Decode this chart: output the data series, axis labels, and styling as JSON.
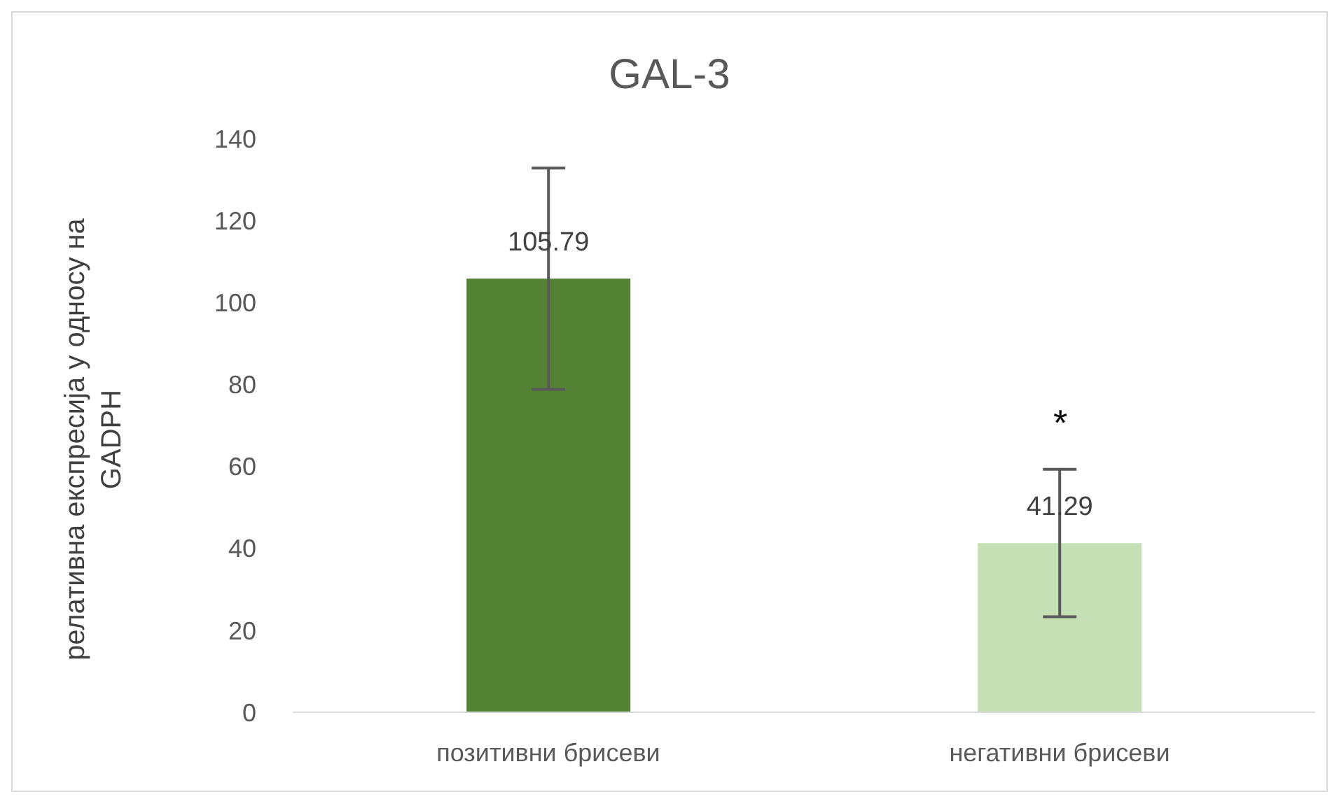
{
  "chart_data": {
    "type": "bar",
    "title": "GAL-3",
    "ylabel": "релативна експресија у односу на GADPH",
    "categories": [
      "позитивни брисеви",
      "негативни брисеви"
    ],
    "values": [
      105.79,
      41.29
    ],
    "colors": [
      "#548235",
      "#c5e0b4"
    ],
    "errors": [
      27,
      18
    ],
    "ylim": [
      0,
      140
    ],
    "yticks": [
      0,
      20,
      40,
      60,
      80,
      100,
      120,
      140
    ],
    "grid": false,
    "data_labels": true,
    "annotations": [
      "*"
    ]
  }
}
